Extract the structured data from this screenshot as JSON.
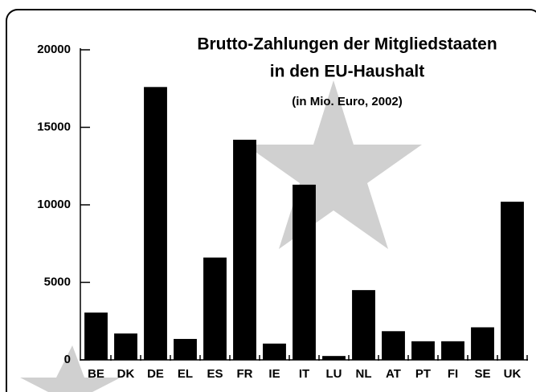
{
  "chart_data": {
    "type": "bar",
    "title": "Brutto-Zahlungen der Mitgliedstaaten",
    "title_line2": "in den EU-Haushalt",
    "subtitle": "(in Mio. Euro, 2002)",
    "categories": [
      "BE",
      "DK",
      "DE",
      "EL",
      "ES",
      "FR",
      "IE",
      "IT",
      "LU",
      "NL",
      "AT",
      "PT",
      "FI",
      "SE",
      "UK"
    ],
    "values": [
      3050,
      1700,
      17600,
      1350,
      6600,
      14200,
      1050,
      11300,
      250,
      4500,
      1850,
      1200,
      1200,
      2100,
      10200
    ],
    "color": "#000000",
    "ylim": [
      0,
      20000
    ],
    "yticks": [
      0,
      5000,
      10000,
      15000,
      20000
    ]
  }
}
